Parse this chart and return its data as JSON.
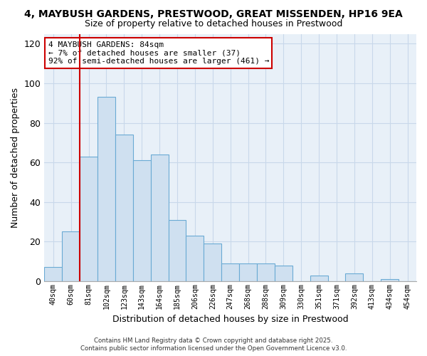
{
  "title": "4, MAYBUSH GARDENS, PRESTWOOD, GREAT MISSENDEN, HP16 9EA",
  "subtitle": "Size of property relative to detached houses in Prestwood",
  "xlabel": "Distribution of detached houses by size in Prestwood",
  "ylabel": "Number of detached properties",
  "bin_labels": [
    "40sqm",
    "60sqm",
    "81sqm",
    "102sqm",
    "123sqm",
    "143sqm",
    "164sqm",
    "185sqm",
    "206sqm",
    "226sqm",
    "247sqm",
    "268sqm",
    "288sqm",
    "309sqm",
    "330sqm",
    "351sqm",
    "371sqm",
    "392sqm",
    "413sqm",
    "434sqm",
    "454sqm"
  ],
  "bar_values": [
    7,
    25,
    63,
    93,
    74,
    61,
    64,
    31,
    23,
    19,
    9,
    9,
    9,
    8,
    0,
    3,
    0,
    4,
    0,
    1,
    0
  ],
  "bar_color": "#cfe0f0",
  "bar_edge_color": "#6aaad4",
  "ylim": [
    0,
    125
  ],
  "yticks": [
    0,
    20,
    40,
    60,
    80,
    100,
    120
  ],
  "property_line_color": "#cc0000",
  "annotation_title": "4 MAYBUSH GARDENS: 84sqm",
  "annotation_line1": "← 7% of detached houses are smaller (37)",
  "annotation_line2": "92% of semi-detached houses are larger (461) →",
  "footer_line1": "Contains HM Land Registry data © Crown copyright and database right 2025.",
  "footer_line2": "Contains public sector information licensed under the Open Government Licence v3.0.",
  "background_color": "#ffffff",
  "plot_bg_color": "#e8f0f8",
  "grid_color": "#c8d8ea"
}
